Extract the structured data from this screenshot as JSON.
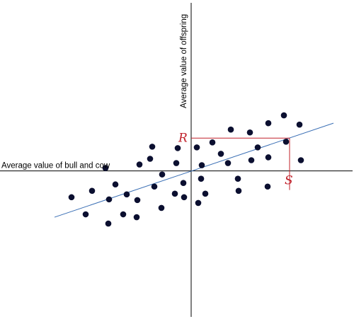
{
  "chart_data": {
    "type": "scatter",
    "title": "",
    "xlabel": "Average value of bull and cow",
    "ylabel": "Average value of offspring",
    "xlim": [
      -270,
      230
    ],
    "ylim": [
      -208,
      240
    ],
    "grid": false,
    "legend": "none",
    "points": [
      {
        "x": -169,
        "y": -37
      },
      {
        "x": -149,
        "y": -61
      },
      {
        "x": -140,
        "y": -28
      },
      {
        "x": -121,
        "y": 4
      },
      {
        "x": -117,
        "y": -74
      },
      {
        "x": -116,
        "y": -40
      },
      {
        "x": -107,
        "y": -19
      },
      {
        "x": -96,
        "y": -61
      },
      {
        "x": -91,
        "y": -33
      },
      {
        "x": -77,
        "y": -65
      },
      {
        "x": -76,
        "y": -41
      },
      {
        "x": -73,
        "y": 9
      },
      {
        "x": -58,
        "y": 17
      },
      {
        "x": -55,
        "y": 34
      },
      {
        "x": -52,
        "y": -22
      },
      {
        "x": -42,
        "y": -52
      },
      {
        "x": -41,
        "y": -5
      },
      {
        "x": -23,
        "y": -32
      },
      {
        "x": -21,
        "y": 11
      },
      {
        "x": -19,
        "y": 32
      },
      {
        "x": -11,
        "y": -17
      },
      {
        "x": -10,
        "y": -37
      },
      {
        "x": 8,
        "y": 33
      },
      {
        "x": 10,
        "y": -45
      },
      {
        "x": 14,
        "y": -11
      },
      {
        "x": 15,
        "y": 8
      },
      {
        "x": 20,
        "y": -32
      },
      {
        "x": 30,
        "y": 40
      },
      {
        "x": 42,
        "y": 24
      },
      {
        "x": 52,
        "y": 11
      },
      {
        "x": 56,
        "y": 58
      },
      {
        "x": 66,
        "y": -11
      },
      {
        "x": 67,
        "y": -28
      },
      {
        "x": 83,
        "y": 54
      },
      {
        "x": 85,
        "y": 15
      },
      {
        "x": 94,
        "y": 33
      },
      {
        "x": 108,
        "y": -22
      },
      {
        "x": 109,
        "y": 19
      },
      {
        "x": 109,
        "y": 67
      },
      {
        "x": 131,
        "y": 78
      },
      {
        "x": 134,
        "y": 41
      },
      {
        "x": 153,
        "y": 65
      },
      {
        "x": 155,
        "y": 15
      }
    ],
    "regression_line": {
      "x": [
        -193,
        201
      ],
      "y": [
        -65,
        67
      ]
    },
    "selection": {
      "x": 139,
      "y": 46,
      "x_label": "S",
      "y_label": "R"
    },
    "colors": {
      "points": "#0b0f30",
      "regression": "#3a6fb5",
      "guide": "#c0202a",
      "axis": "#000000"
    }
  }
}
